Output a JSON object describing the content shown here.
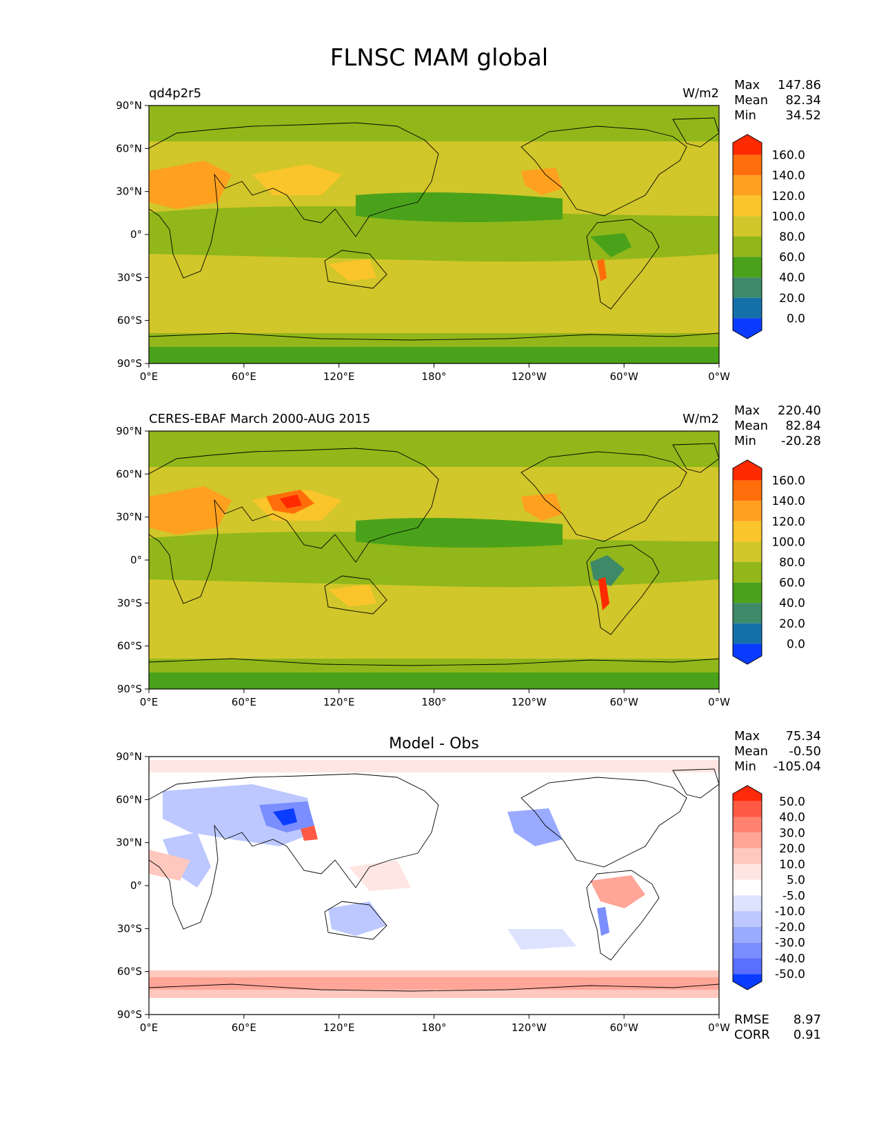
{
  "title": "FLNSC MAM global",
  "x_ticks": [
    "0°E",
    "60°E",
    "120°E",
    "180°",
    "120°W",
    "60°W",
    "0°W"
  ],
  "y_ticks": [
    "90°N",
    "60°N",
    "30°N",
    "0°",
    "30°S",
    "60°S",
    "90°S"
  ],
  "panels": [
    {
      "id": "model",
      "left_label": "qd4p2r5",
      "center_label": "",
      "units": "W/m2",
      "stats": [
        {
          "label": "Max",
          "value": "147.86"
        },
        {
          "label": "Mean",
          "value": "82.34"
        },
        {
          "label": "Min",
          "value": "34.52"
        }
      ],
      "colorbar": {
        "labels": [
          "160.0",
          "140.0",
          "120.0",
          "100.0",
          "80.0",
          "60.0",
          "40.0",
          "20.0",
          "0.0"
        ],
        "colors": [
          "#ff2a00",
          "#ff6e0a",
          "#ffa01e",
          "#f9c52a",
          "#d1c62a",
          "#91b71a",
          "#4aa21a",
          "#3e8a68",
          "#1570a8",
          "#0a3cff"
        ]
      }
    },
    {
      "id": "obs",
      "left_label": "CERES-EBAF March 2000-AUG 2015",
      "center_label": "",
      "units": "W/m2",
      "stats": [
        {
          "label": "Max",
          "value": "220.40"
        },
        {
          "label": "Mean",
          "value": "82.84"
        },
        {
          "label": "Min",
          "value": "-20.28"
        }
      ],
      "colorbar": {
        "labels": [
          "160.0",
          "140.0",
          "120.0",
          "100.0",
          "80.0",
          "60.0",
          "40.0",
          "20.0",
          "0.0"
        ],
        "colors": [
          "#ff2a00",
          "#ff6e0a",
          "#ffa01e",
          "#f9c52a",
          "#d1c62a",
          "#91b71a",
          "#4aa21a",
          "#3e8a68",
          "#1570a8",
          "#0a3cff"
        ]
      }
    },
    {
      "id": "diff",
      "left_label": "",
      "center_label": "Model - Obs",
      "units": "",
      "stats": [
        {
          "label": "Max",
          "value": "75.34"
        },
        {
          "label": "Mean",
          "value": "-0.50"
        },
        {
          "label": "Min",
          "value": "-105.04"
        }
      ],
      "extra_stats": [
        {
          "label": "RMSE",
          "value": "8.97"
        },
        {
          "label": "CORR",
          "value": "0.91"
        }
      ],
      "colorbar": {
        "labels": [
          "50.0",
          "40.0",
          "30.0",
          "20.0",
          "10.0",
          "5.0",
          "-5.0",
          "-10.0",
          "-20.0",
          "-30.0",
          "-40.0",
          "-50.0"
        ],
        "colors": [
          "#ff2a0a",
          "#ff5a44",
          "#ff8270",
          "#ffa698",
          "#ffc8bf",
          "#ffe6e2",
          "#ffffff",
          "#dde3ff",
          "#bcc8ff",
          "#9aabff",
          "#7a8eff",
          "#5a6eff",
          "#0a3cff"
        ]
      }
    }
  ]
}
